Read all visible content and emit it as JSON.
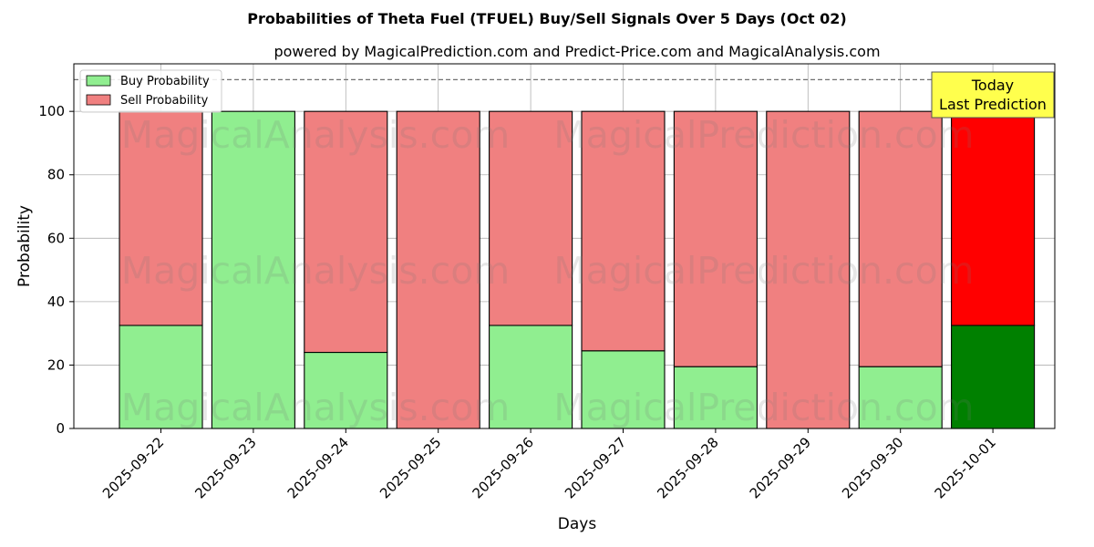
{
  "chart_data": {
    "type": "bar",
    "title": "Probabilities of Theta Fuel (TFUEL) Buy/Sell Signals Over 5 Days (Oct 02)",
    "subtitle": "powered by MagicalPrediction.com and Predict-Price.com and MagicalAnalysis.com",
    "xlabel": "Days",
    "ylabel": "Probability",
    "ylim": [
      0,
      115
    ],
    "yticks": [
      0,
      20,
      40,
      60,
      80,
      100
    ],
    "reference_line": 110,
    "grid": true,
    "stacked": true,
    "legend_position": "top-left",
    "categories": [
      "2025-09-22",
      "2025-09-23",
      "2025-09-24",
      "2025-09-25",
      "2025-09-26",
      "2025-09-27",
      "2025-09-28",
      "2025-09-29",
      "2025-09-30",
      "2025-10-01"
    ],
    "series": [
      {
        "name": "Buy Probability",
        "color": "#90ee90",
        "highlight_color": "#008000",
        "values": [
          32.5,
          100,
          24,
          0,
          32.5,
          24.5,
          19.5,
          0,
          19.5,
          32.5
        ]
      },
      {
        "name": "Sell Probability",
        "color": "#f08080",
        "highlight_color": "#ff0000",
        "values": [
          67.5,
          0,
          76,
          100,
          67.5,
          75.5,
          80.5,
          100,
          80.5,
          67.5
        ]
      }
    ],
    "highlight_category": "2025-10-01",
    "annotation": {
      "line1": "Today",
      "line2": "Last Prediction",
      "color": "#ffff4d"
    },
    "watermarks": [
      "MagicalAnalysis.com",
      "MagicalPrediction.com"
    ]
  }
}
